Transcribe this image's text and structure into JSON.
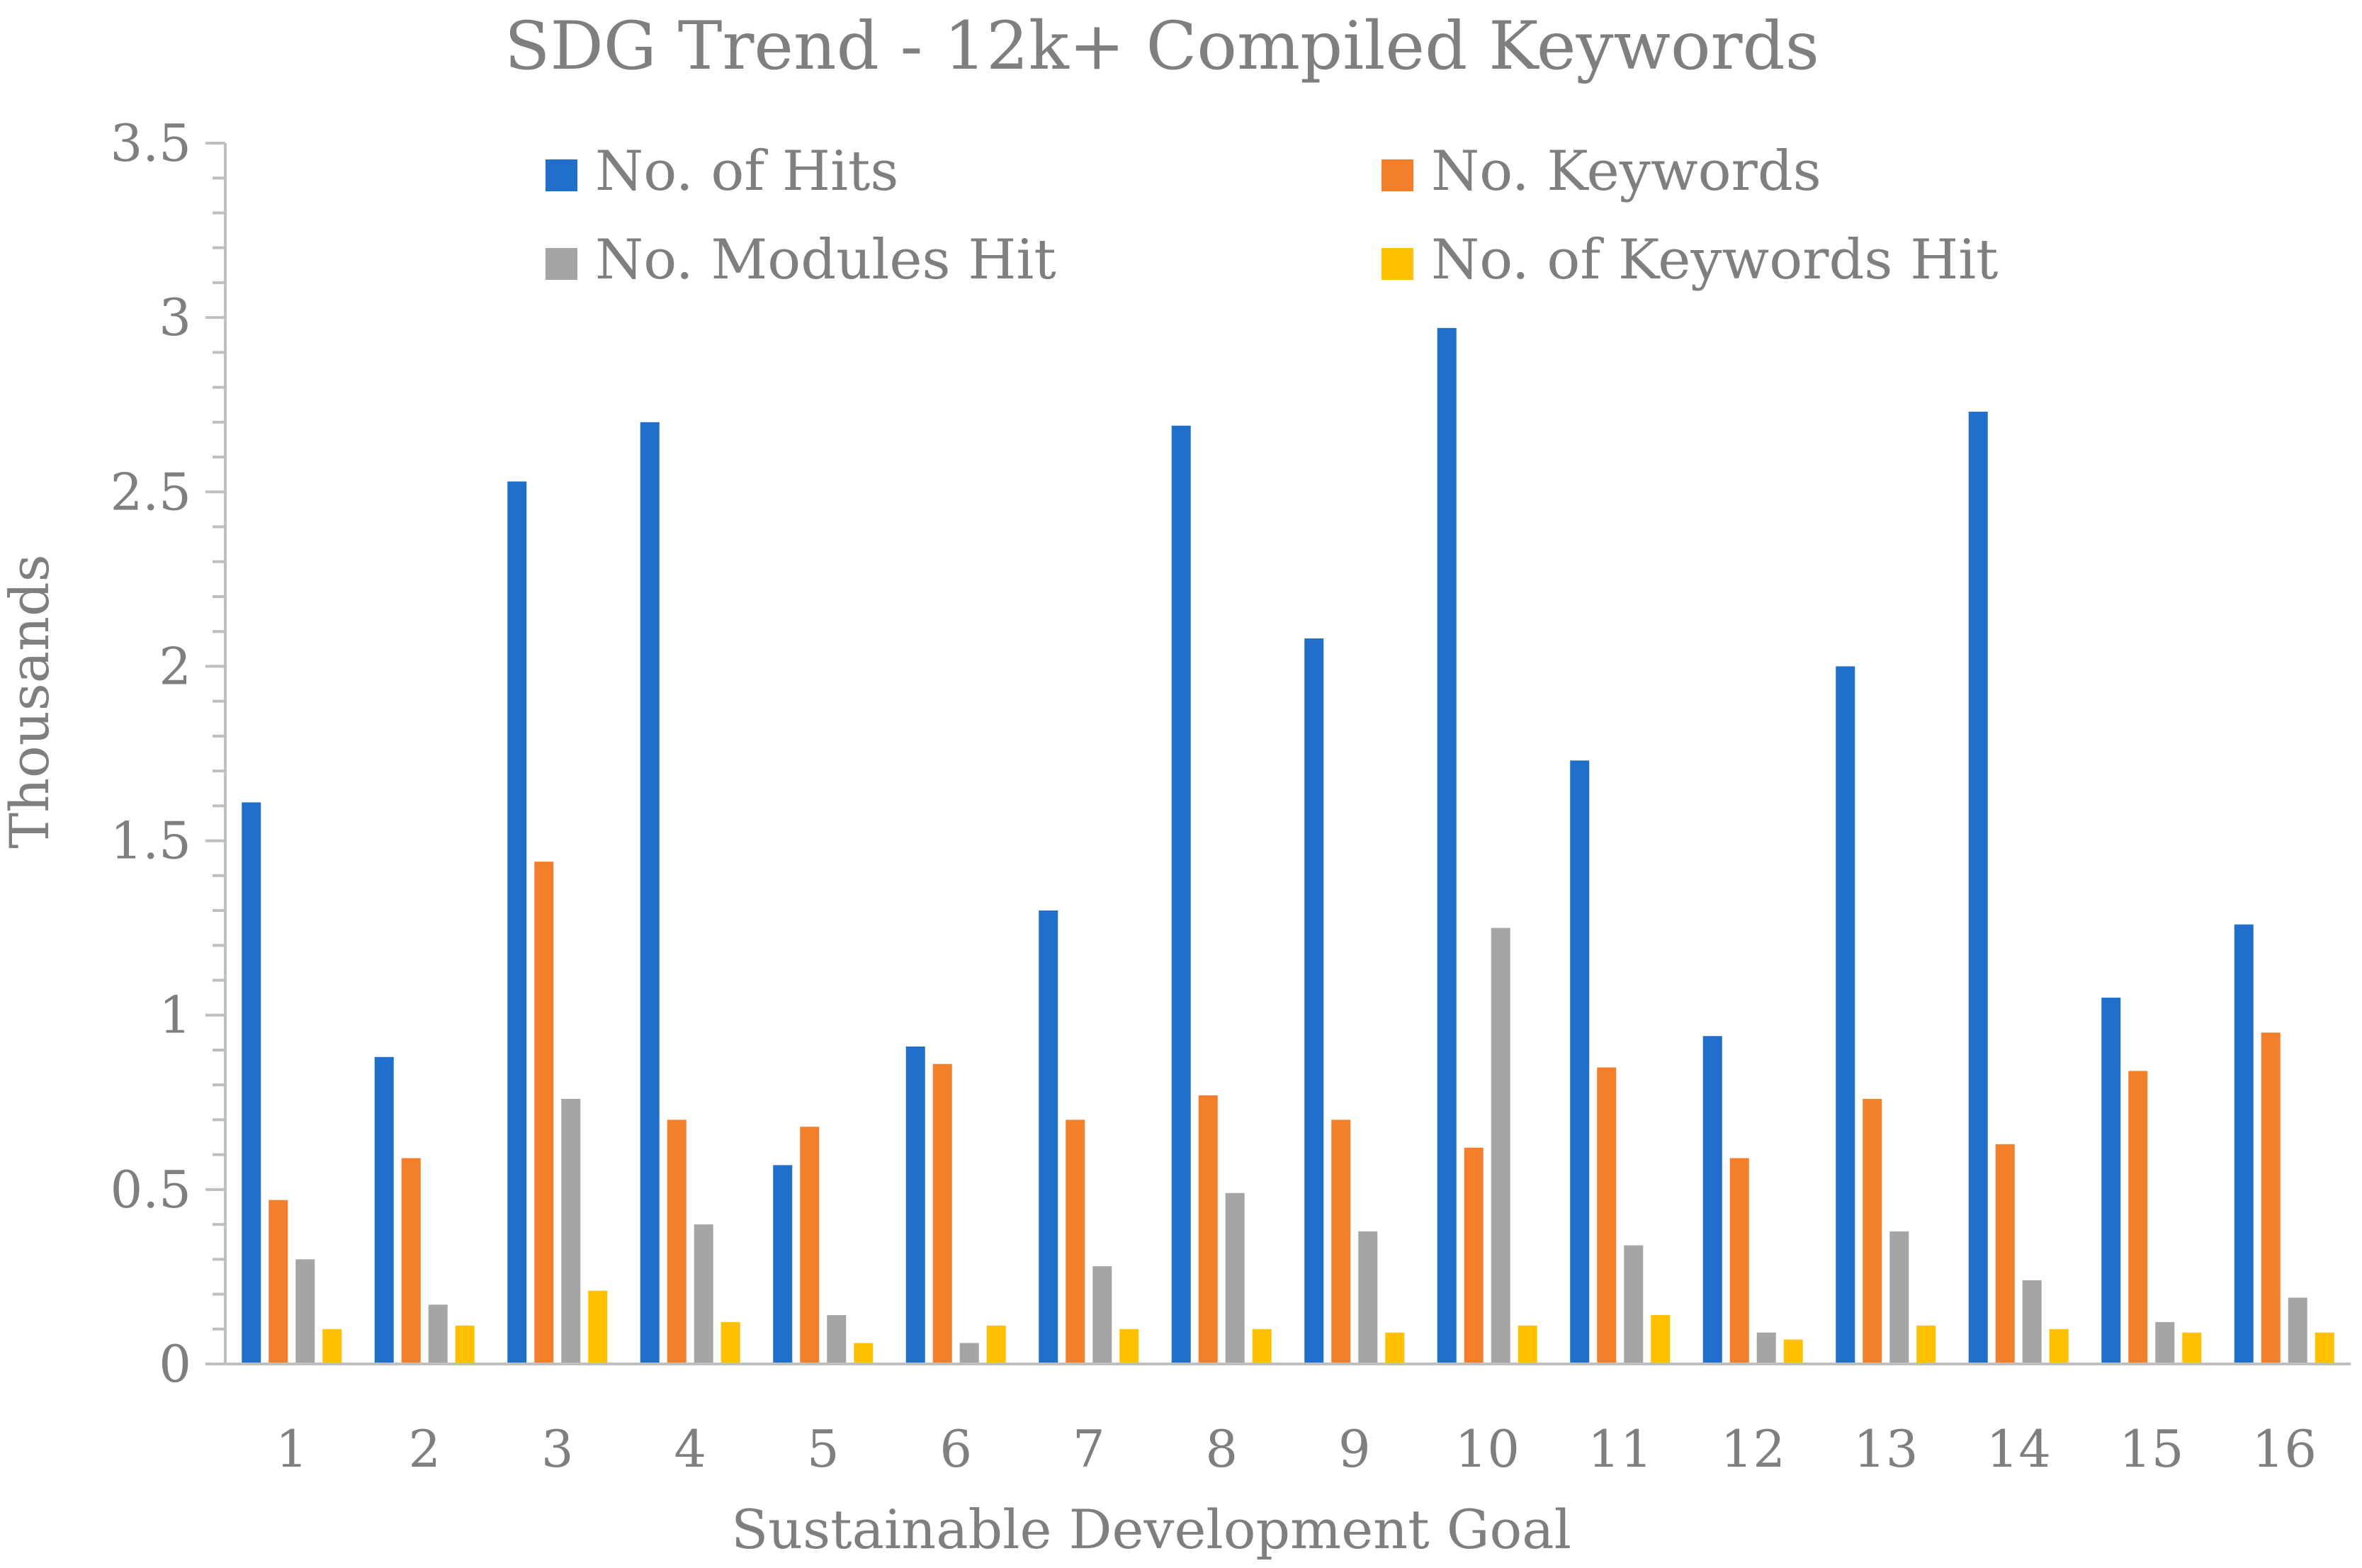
{
  "chart_data": {
    "type": "bar",
    "title": "SDG Trend - 12k+ Compiled Keywords",
    "xlabel": "Sustainable Development Goal",
    "ylabel": "Thousands",
    "ylim": [
      0,
      3.5
    ],
    "y_ticks": [
      "0",
      "0.5",
      "1",
      "1.5",
      "2",
      "2.5",
      "3",
      "3.5"
    ],
    "categories": [
      "1",
      "2",
      "3",
      "4",
      "5",
      "6",
      "7",
      "8",
      "9",
      "10",
      "11",
      "12",
      "13",
      "14",
      "15",
      "16"
    ],
    "legend_position": "top",
    "series": [
      {
        "name": "No. of Hits",
        "color": "#1f6fcb",
        "values": [
          1.61,
          0.88,
          2.53,
          2.7,
          0.57,
          0.91,
          1.3,
          2.69,
          2.08,
          2.97,
          1.73,
          0.94,
          2.0,
          2.73,
          1.05,
          1.26
        ]
      },
      {
        "name": "No. Keywords",
        "color": "#f47f2a",
        "values": [
          0.47,
          0.59,
          1.44,
          0.7,
          0.68,
          0.86,
          0.7,
          0.77,
          0.7,
          0.62,
          0.85,
          0.59,
          0.76,
          0.63,
          0.84,
          0.95
        ]
      },
      {
        "name": "No. Modules Hit",
        "color": "#a5a5a5",
        "values": [
          0.3,
          0.17,
          0.76,
          0.4,
          0.14,
          0.06,
          0.28,
          0.49,
          0.38,
          1.25,
          0.34,
          0.09,
          0.38,
          0.24,
          0.12,
          0.19
        ]
      },
      {
        "name": "No. of Keywords Hit",
        "color": "#ffc000",
        "values": [
          0.1,
          0.11,
          0.21,
          0.12,
          0.06,
          0.11,
          0.1,
          0.1,
          0.09,
          0.11,
          0.14,
          0.07,
          0.11,
          0.1,
          0.09,
          0.09
        ]
      }
    ]
  }
}
